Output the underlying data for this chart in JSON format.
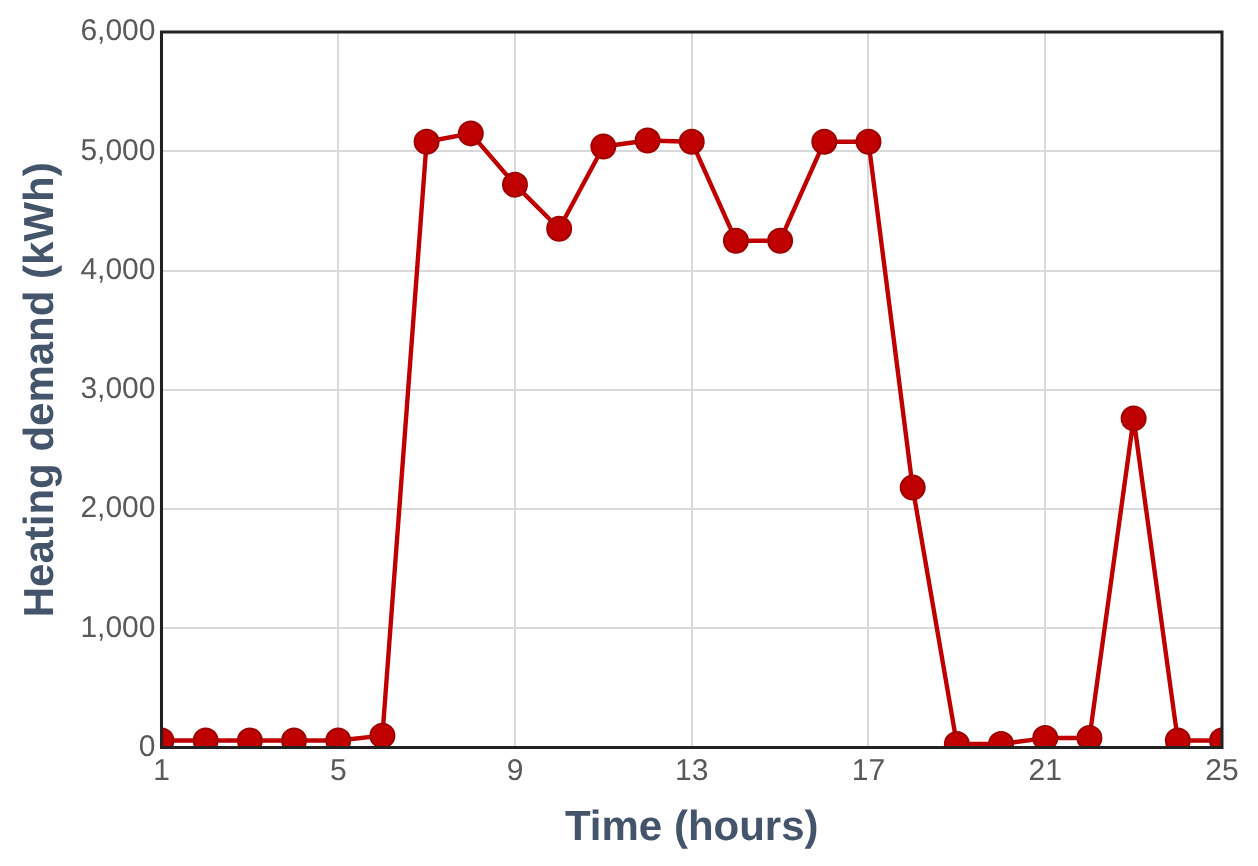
{
  "chart_data": {
    "type": "line",
    "xlabel": "Time (hours)",
    "ylabel": "Heating demand (kWh)",
    "x": [
      1,
      2,
      3,
      4,
      5,
      6,
      7,
      8,
      9,
      10,
      11,
      12,
      13,
      14,
      15,
      16,
      17,
      18,
      19,
      20,
      21,
      22,
      23,
      24,
      25
    ],
    "series": [
      {
        "color": "#c00000",
        "values": [
          60,
          60,
          60,
          60,
          60,
          100,
          5080,
          5150,
          4720,
          4350,
          5040,
          5090,
          5080,
          4250,
          4250,
          5080,
          5080,
          2180,
          30,
          30,
          80,
          80,
          2760,
          60,
          60
        ]
      }
    ],
    "xlim": [
      1,
      25
    ],
    "xticks": [
      1,
      5,
      9,
      13,
      17,
      21,
      25
    ],
    "ylim": [
      0,
      6000
    ],
    "yticks": [
      0,
      {
        "value": 1000,
        "label": "1,000"
      },
      {
        "value": 2000,
        "label": "2,000"
      },
      {
        "value": 3000,
        "label": "3,000"
      },
      {
        "value": 4000,
        "label": "4,000"
      },
      {
        "value": 5000,
        "label": "5,000"
      },
      {
        "value": 6000,
        "label": "6,000"
      }
    ],
    "grid": true,
    "legend": false,
    "marker": "circle",
    "line_style": "solid"
  }
}
